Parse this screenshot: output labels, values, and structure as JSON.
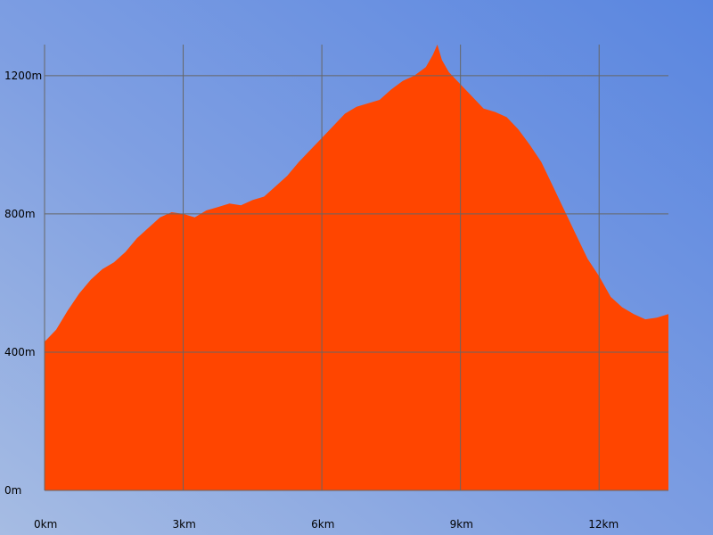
{
  "chart_data": {
    "type": "area",
    "title": "",
    "xlabel": "",
    "ylabel": "",
    "x_unit": "km",
    "y_unit": "m",
    "xlim": [
      0,
      13.5
    ],
    "ylim": [
      0,
      1290
    ],
    "grid": true,
    "colors": {
      "fill": "#ff4500",
      "grid": "#666666"
    },
    "x_ticks": [
      {
        "value": 0,
        "label": "0km"
      },
      {
        "value": 3,
        "label": "3km"
      },
      {
        "value": 6,
        "label": "6km"
      },
      {
        "value": 9,
        "label": "9km"
      },
      {
        "value": 12,
        "label": "12km"
      }
    ],
    "y_ticks": [
      {
        "value": 0,
        "label": "0m"
      },
      {
        "value": 400,
        "label": "400m"
      },
      {
        "value": 800,
        "label": "800m"
      },
      {
        "value": 1200,
        "label": "1200m"
      }
    ],
    "series": [
      {
        "x": [
          0,
          0.25,
          0.5,
          0.75,
          1.0,
          1.25,
          1.5,
          1.75,
          2.0,
          2.25,
          2.5,
          2.75,
          3.0,
          3.25,
          3.5,
          3.75,
          4.0,
          4.25,
          4.5,
          4.75,
          5.0,
          5.25,
          5.5,
          5.75,
          6.0,
          6.25,
          6.5,
          6.75,
          7.0,
          7.25,
          7.5,
          7.75,
          8.0,
          8.25,
          8.4,
          8.5,
          8.6,
          8.75,
          9.0,
          9.25,
          9.5,
          9.75,
          10.0,
          10.25,
          10.5,
          10.75,
          11.0,
          11.25,
          11.5,
          11.75,
          12.0,
          12.25,
          12.5,
          12.75,
          13.0,
          13.25,
          13.5
        ],
        "y": [
          430,
          465,
          520,
          570,
          610,
          640,
          660,
          690,
          730,
          760,
          790,
          805,
          800,
          790,
          810,
          820,
          830,
          825,
          840,
          850,
          880,
          910,
          950,
          985,
          1020,
          1055,
          1090,
          1110,
          1120,
          1130,
          1160,
          1185,
          1200,
          1225,
          1260,
          1290,
          1245,
          1210,
          1175,
          1140,
          1105,
          1095,
          1080,
          1045,
          1000,
          950,
          880,
          810,
          740,
          670,
          620,
          560,
          530,
          510,
          495,
          500,
          510
        ]
      }
    ]
  }
}
